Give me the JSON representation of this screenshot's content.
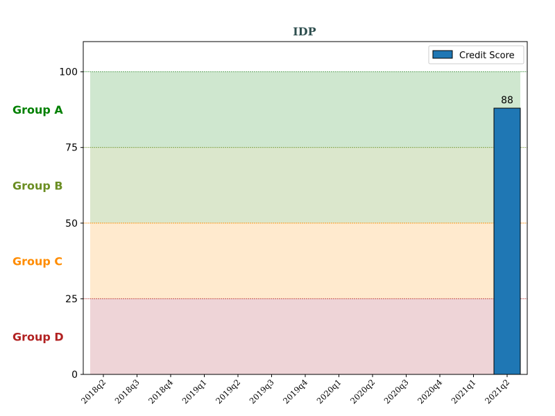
{
  "chart_data": {
    "type": "bar",
    "title": "IDP",
    "title_color": "#2f4f4f",
    "categories": [
      "2018q2",
      "2018q3",
      "2018q4",
      "2019q1",
      "2019q2",
      "2019q3",
      "2019q4",
      "2020q1",
      "2020q2",
      "2020q3",
      "2020q4",
      "2021q1",
      "2021q2"
    ],
    "series": [
      {
        "name": "Credit Score",
        "values": [
          null,
          null,
          null,
          null,
          null,
          null,
          null,
          null,
          null,
          null,
          null,
          null,
          88
        ],
        "color": "#1f77b4"
      }
    ],
    "data_labels": [
      "",
      "",
      "",
      "",
      "",
      "",
      "",
      "",
      "",
      "",
      "",
      "",
      "88"
    ],
    "ylim": [
      0,
      110
    ],
    "yticks": [
      "0",
      "25",
      "50",
      "75",
      "100"
    ],
    "ytick_values": [
      0,
      25,
      50,
      75,
      100
    ],
    "legend": {
      "position": "top-right",
      "label": "Credit Score"
    },
    "bands": [
      {
        "label": "Group A",
        "from": 75,
        "to": 100,
        "fill": "#9fd09f",
        "line_color": "#2e8b2e",
        "text_color": "#008000"
      },
      {
        "label": "Group B",
        "from": 50,
        "to": 75,
        "fill": "#b8cf9a",
        "line_color": "#6b8e23",
        "text_color": "#6b8e23"
      },
      {
        "label": "Group C",
        "from": 25,
        "to": 50,
        "fill": "#ffd59e",
        "line_color": "#ff8c00",
        "text_color": "#ff8c00"
      },
      {
        "label": "Group D",
        "from": 0,
        "to": 25,
        "fill": "#ddaaaf",
        "line_color": "#b22222",
        "text_color": "#b22222"
      }
    ],
    "xlabel": "",
    "ylabel": ""
  }
}
